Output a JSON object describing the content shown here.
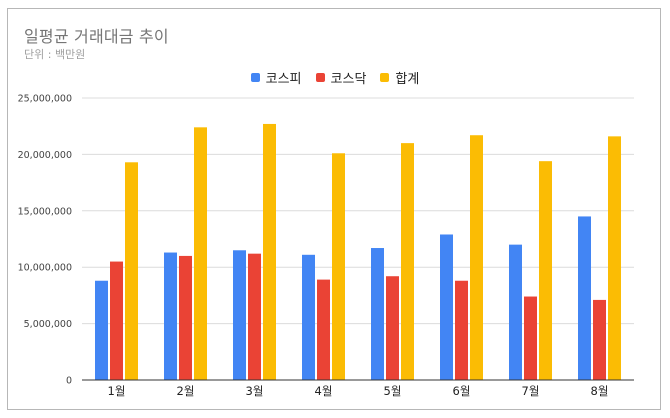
{
  "title": "일평균 거래대금 추이",
  "subtitle": "단위 : 백만원",
  "colors": {
    "kospi": "#4285f4",
    "kosdaq": "#ea4335",
    "total": "#fbbc04",
    "grid": "#dcdcdc",
    "axis": "#333333"
  },
  "chart_data": {
    "type": "bar",
    "title": "일평균 거래대금 추이",
    "subtitle": "단위 : 백만원",
    "categories": [
      "1월",
      "2월",
      "3월",
      "4월",
      "5월",
      "6월",
      "7월",
      "8월"
    ],
    "series": [
      {
        "name": "코스피",
        "color": "#4285f4",
        "values": [
          8800000,
          11300000,
          11500000,
          11100000,
          11700000,
          12900000,
          12000000,
          14500000
        ]
      },
      {
        "name": "코스닥",
        "color": "#ea4335",
        "values": [
          10500000,
          11000000,
          11200000,
          8900000,
          9200000,
          8800000,
          7400000,
          7100000
        ]
      },
      {
        "name": "합계",
        "color": "#fbbc04",
        "values": [
          19300000,
          22400000,
          22700000,
          20100000,
          21000000,
          21700000,
          19400000,
          21600000
        ]
      }
    ],
    "ylim": [
      0,
      25000000
    ],
    "yticks": [
      "0",
      "5,000,000",
      "10,000,000",
      "15,000,000",
      "20,000,000",
      "25,000,000"
    ],
    "ytick_values": [
      0,
      5000000,
      10000000,
      15000000,
      20000000,
      25000000
    ],
    "grid": true,
    "legend": "top-center"
  }
}
